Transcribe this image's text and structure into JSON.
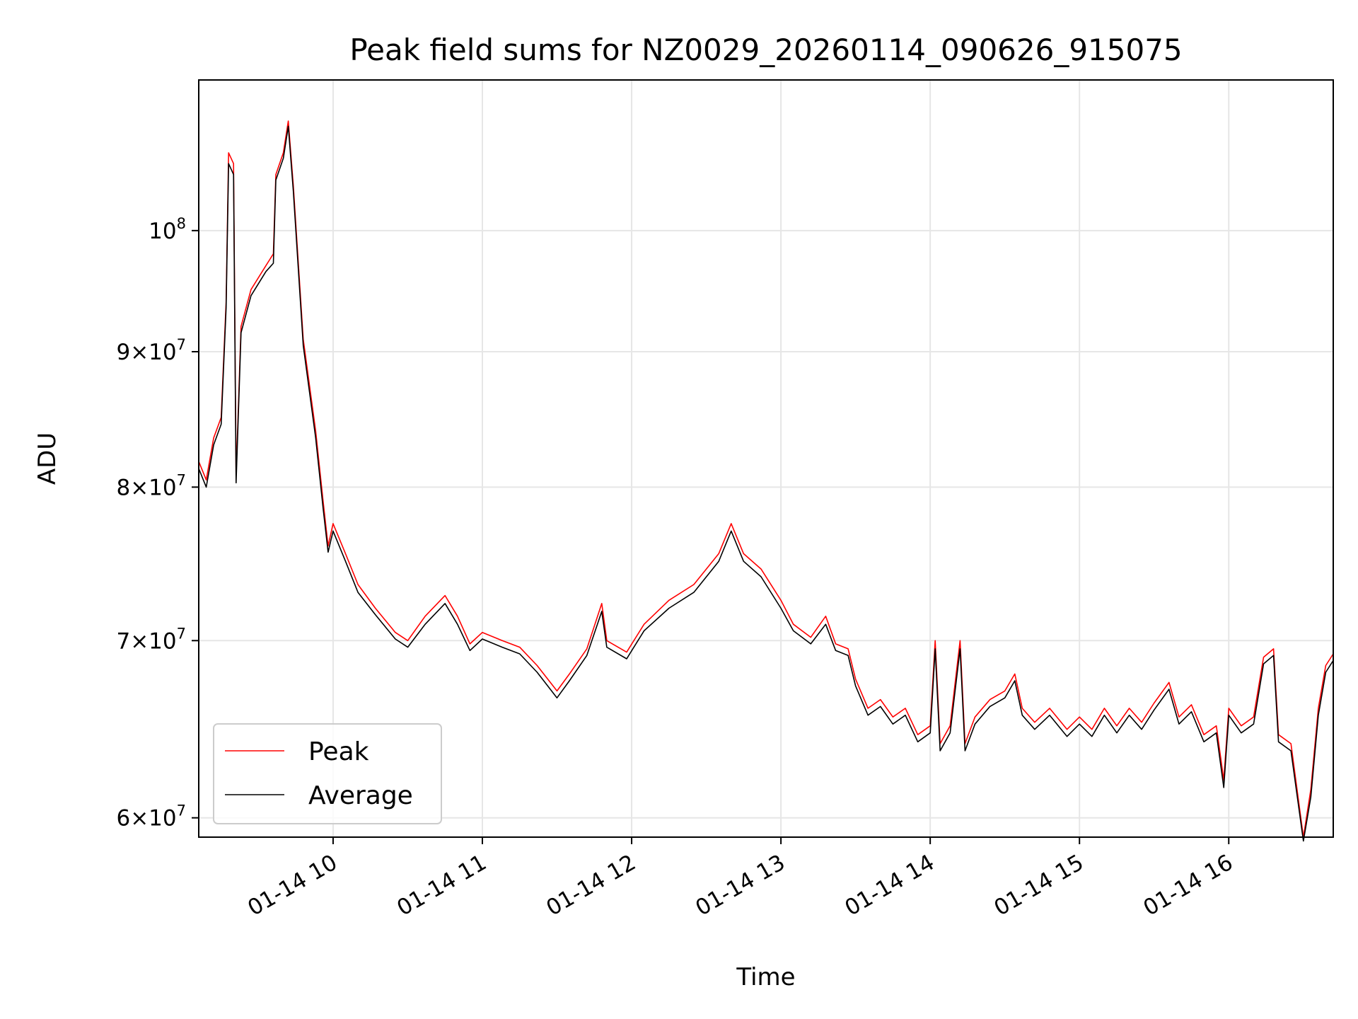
{
  "chart_data": {
    "type": "line",
    "title": "Peak field sums for NZ0029_20260114_090626_915075",
    "xlabel": "Time",
    "ylabel": "ADU",
    "y_scale": "log",
    "grid": true,
    "legend_placement": "lower-left",
    "xlim": [
      "2026-01-14 09:06",
      "2026-01-14 16:42"
    ],
    "ylim": [
      59000000,
      114000000
    ],
    "x_ticks": [
      {
        "value": "2026-01-14 10:00",
        "label": "01-14 10"
      },
      {
        "value": "2026-01-14 11:00",
        "label": "01-14 11"
      },
      {
        "value": "2026-01-14 12:00",
        "label": "01-14 12"
      },
      {
        "value": "2026-01-14 13:00",
        "label": "01-14 13"
      },
      {
        "value": "2026-01-14 14:00",
        "label": "01-14 14"
      },
      {
        "value": "2026-01-14 15:00",
        "label": "01-14 15"
      },
      {
        "value": "2026-01-14 16:00",
        "label": "01-14 16"
      }
    ],
    "y_ticks": [
      {
        "value": 60000000,
        "mant": "6",
        "exp": "7"
      },
      {
        "value": 70000000,
        "mant": "7",
        "exp": "7"
      },
      {
        "value": 80000000,
        "mant": "8",
        "exp": "7"
      },
      {
        "value": 90000000,
        "mant": "9",
        "exp": "7"
      },
      {
        "value": 100000000,
        "mant": "",
        "exp": "8"
      }
    ],
    "series": [
      {
        "name": "Peak",
        "color": "#ff0000",
        "points": [
          [
            "2026-01-14 09:06",
            81800000
          ],
          [
            "2026-01-14 09:09",
            80500000
          ],
          [
            "2026-01-14 09:12",
            83500000
          ],
          [
            "2026-01-14 09:15",
            85000000
          ],
          [
            "2026-01-14 09:17",
            94000000
          ],
          [
            "2026-01-14 09:18",
            107000000
          ],
          [
            "2026-01-14 09:20",
            106000000
          ],
          [
            "2026-01-14 09:21",
            80800000
          ],
          [
            "2026-01-14 09:23",
            92000000
          ],
          [
            "2026-01-14 09:27",
            95000000
          ],
          [
            "2026-01-14 09:33",
            97000000
          ],
          [
            "2026-01-14 09:36",
            98000000
          ],
          [
            "2026-01-14 09:37",
            105000000
          ],
          [
            "2026-01-14 09:40",
            107000000
          ],
          [
            "2026-01-14 09:42",
            110000000
          ],
          [
            "2026-01-14 09:44",
            104000000
          ],
          [
            "2026-01-14 09:48",
            91000000
          ],
          [
            "2026-01-14 09:53",
            84000000
          ],
          [
            "2026-01-14 09:56",
            79000000
          ],
          [
            "2026-01-14 09:58",
            76000000
          ],
          [
            "2026-01-14 10:00",
            77500000
          ],
          [
            "2026-01-14 10:05",
            75500000
          ],
          [
            "2026-01-14 10:10",
            73500000
          ],
          [
            "2026-01-14 10:17",
            72000000
          ],
          [
            "2026-01-14 10:25",
            70500000
          ],
          [
            "2026-01-14 10:30",
            70000000
          ],
          [
            "2026-01-14 10:37",
            71500000
          ],
          [
            "2026-01-14 10:45",
            72800000
          ],
          [
            "2026-01-14 10:50",
            71500000
          ],
          [
            "2026-01-14 10:55",
            69800000
          ],
          [
            "2026-01-14 11:00",
            70500000
          ],
          [
            "2026-01-14 11:08",
            70000000
          ],
          [
            "2026-01-14 11:15",
            69600000
          ],
          [
            "2026-01-14 11:22",
            68500000
          ],
          [
            "2026-01-14 11:30",
            67000000
          ],
          [
            "2026-01-14 11:35",
            68000000
          ],
          [
            "2026-01-14 11:42",
            69500000
          ],
          [
            "2026-01-14 11:48",
            72300000
          ],
          [
            "2026-01-14 11:50",
            70000000
          ],
          [
            "2026-01-14 11:58",
            69300000
          ],
          [
            "2026-01-14 12:05",
            71000000
          ],
          [
            "2026-01-14 12:15",
            72500000
          ],
          [
            "2026-01-14 12:25",
            73500000
          ],
          [
            "2026-01-14 12:35",
            75500000
          ],
          [
            "2026-01-14 12:40",
            77500000
          ],
          [
            "2026-01-14 12:45",
            75500000
          ],
          [
            "2026-01-14 12:52",
            74500000
          ],
          [
            "2026-01-14 13:00",
            72500000
          ],
          [
            "2026-01-14 13:05",
            71000000
          ],
          [
            "2026-01-14 13:12",
            70200000
          ],
          [
            "2026-01-14 13:18",
            71500000
          ],
          [
            "2026-01-14 13:22",
            69800000
          ],
          [
            "2026-01-14 13:27",
            69500000
          ],
          [
            "2026-01-14 13:30",
            67700000
          ],
          [
            "2026-01-14 13:35",
            66000000
          ],
          [
            "2026-01-14 13:40",
            66500000
          ],
          [
            "2026-01-14 13:45",
            65500000
          ],
          [
            "2026-01-14 13:50",
            66000000
          ],
          [
            "2026-01-14 13:55",
            64500000
          ],
          [
            "2026-01-14 14:00",
            65000000
          ],
          [
            "2026-01-14 14:02",
            70000000
          ],
          [
            "2026-01-14 14:04",
            64000000
          ],
          [
            "2026-01-14 14:08",
            65000000
          ],
          [
            "2026-01-14 14:12",
            70000000
          ],
          [
            "2026-01-14 14:14",
            64000000
          ],
          [
            "2026-01-14 14:18",
            65500000
          ],
          [
            "2026-01-14 14:24",
            66500000
          ],
          [
            "2026-01-14 14:30",
            67000000
          ],
          [
            "2026-01-14 14:34",
            68000000
          ],
          [
            "2026-01-14 14:37",
            66000000
          ],
          [
            "2026-01-14 14:42",
            65200000
          ],
          [
            "2026-01-14 14:48",
            66000000
          ],
          [
            "2026-01-14 14:55",
            64800000
          ],
          [
            "2026-01-14 15:00",
            65500000
          ],
          [
            "2026-01-14 15:05",
            64800000
          ],
          [
            "2026-01-14 15:10",
            66000000
          ],
          [
            "2026-01-14 15:15",
            65000000
          ],
          [
            "2026-01-14 15:20",
            66000000
          ],
          [
            "2026-01-14 15:25",
            65200000
          ],
          [
            "2026-01-14 15:30",
            66300000
          ],
          [
            "2026-01-14 15:36",
            67500000
          ],
          [
            "2026-01-14 15:40",
            65500000
          ],
          [
            "2026-01-14 15:45",
            66200000
          ],
          [
            "2026-01-14 15:50",
            64500000
          ],
          [
            "2026-01-14 15:55",
            65000000
          ],
          [
            "2026-01-14 15:58",
            62000000
          ],
          [
            "2026-01-14 16:00",
            66000000
          ],
          [
            "2026-01-14 16:05",
            65000000
          ],
          [
            "2026-01-14 16:10",
            65500000
          ],
          [
            "2026-01-14 16:14",
            69000000
          ],
          [
            "2026-01-14 16:18",
            69500000
          ],
          [
            "2026-01-14 16:20",
            64500000
          ],
          [
            "2026-01-14 16:25",
            64000000
          ],
          [
            "2026-01-14 16:30",
            59000000
          ],
          [
            "2026-01-14 16:33",
            61500000
          ],
          [
            "2026-01-14 16:36",
            66000000
          ],
          [
            "2026-01-14 16:39",
            68500000
          ],
          [
            "2026-01-14 16:42",
            69200000
          ]
        ]
      },
      {
        "name": "Average",
        "color": "#000000",
        "points": [
          [
            "2026-01-14 09:06",
            81300000
          ],
          [
            "2026-01-14 09:09",
            80000000
          ],
          [
            "2026-01-14 09:12",
            83000000
          ],
          [
            "2026-01-14 09:15",
            84500000
          ],
          [
            "2026-01-14 09:17",
            93500000
          ],
          [
            "2026-01-14 09:18",
            106000000
          ],
          [
            "2026-01-14 09:20",
            105000000
          ],
          [
            "2026-01-14 09:21",
            80300000
          ],
          [
            "2026-01-14 09:23",
            91500000
          ],
          [
            "2026-01-14 09:27",
            94500000
          ],
          [
            "2026-01-14 09:33",
            96500000
          ],
          [
            "2026-01-14 09:36",
            97200000
          ],
          [
            "2026-01-14 09:37",
            104500000
          ],
          [
            "2026-01-14 09:40",
            106500000
          ],
          [
            "2026-01-14 09:42",
            109500000
          ],
          [
            "2026-01-14 09:44",
            103500000
          ],
          [
            "2026-01-14 09:48",
            90500000
          ],
          [
            "2026-01-14 09:53",
            83500000
          ],
          [
            "2026-01-14 09:56",
            78500000
          ],
          [
            "2026-01-14 09:58",
            75600000
          ],
          [
            "2026-01-14 10:00",
            77000000
          ],
          [
            "2026-01-14 10:05",
            75000000
          ],
          [
            "2026-01-14 10:10",
            73000000
          ],
          [
            "2026-01-14 10:17",
            71600000
          ],
          [
            "2026-01-14 10:25",
            70100000
          ],
          [
            "2026-01-14 10:30",
            69600000
          ],
          [
            "2026-01-14 10:37",
            71000000
          ],
          [
            "2026-01-14 10:45",
            72300000
          ],
          [
            "2026-01-14 10:50",
            71000000
          ],
          [
            "2026-01-14 10:55",
            69400000
          ],
          [
            "2026-01-14 11:00",
            70100000
          ],
          [
            "2026-01-14 11:08",
            69600000
          ],
          [
            "2026-01-14 11:15",
            69200000
          ],
          [
            "2026-01-14 11:22",
            68100000
          ],
          [
            "2026-01-14 11:30",
            66600000
          ],
          [
            "2026-01-14 11:35",
            67600000
          ],
          [
            "2026-01-14 11:42",
            69100000
          ],
          [
            "2026-01-14 11:48",
            71800000
          ],
          [
            "2026-01-14 11:50",
            69600000
          ],
          [
            "2026-01-14 11:58",
            68900000
          ],
          [
            "2026-01-14 12:05",
            70600000
          ],
          [
            "2026-01-14 12:15",
            72000000
          ],
          [
            "2026-01-14 12:25",
            73000000
          ],
          [
            "2026-01-14 12:35",
            75000000
          ],
          [
            "2026-01-14 12:40",
            77000000
          ],
          [
            "2026-01-14 12:45",
            75000000
          ],
          [
            "2026-01-14 12:52",
            74000000
          ],
          [
            "2026-01-14 13:00",
            72000000
          ],
          [
            "2026-01-14 13:05",
            70600000
          ],
          [
            "2026-01-14 13:12",
            69800000
          ],
          [
            "2026-01-14 13:18",
            71000000
          ],
          [
            "2026-01-14 13:22",
            69400000
          ],
          [
            "2026-01-14 13:27",
            69100000
          ],
          [
            "2026-01-14 13:30",
            67300000
          ],
          [
            "2026-01-14 13:35",
            65600000
          ],
          [
            "2026-01-14 13:40",
            66100000
          ],
          [
            "2026-01-14 13:45",
            65100000
          ],
          [
            "2026-01-14 13:50",
            65600000
          ],
          [
            "2026-01-14 13:55",
            64100000
          ],
          [
            "2026-01-14 14:00",
            64600000
          ],
          [
            "2026-01-14 14:02",
            69500000
          ],
          [
            "2026-01-14 14:04",
            63600000
          ],
          [
            "2026-01-14 14:08",
            64600000
          ],
          [
            "2026-01-14 14:12",
            69500000
          ],
          [
            "2026-01-14 14:14",
            63600000
          ],
          [
            "2026-01-14 14:18",
            65100000
          ],
          [
            "2026-01-14 14:24",
            66100000
          ],
          [
            "2026-01-14 14:30",
            66600000
          ],
          [
            "2026-01-14 14:34",
            67600000
          ],
          [
            "2026-01-14 14:37",
            65600000
          ],
          [
            "2026-01-14 14:42",
            64800000
          ],
          [
            "2026-01-14 14:48",
            65600000
          ],
          [
            "2026-01-14 14:55",
            64400000
          ],
          [
            "2026-01-14 15:00",
            65100000
          ],
          [
            "2026-01-14 15:05",
            64400000
          ],
          [
            "2026-01-14 15:10",
            65600000
          ],
          [
            "2026-01-14 15:15",
            64600000
          ],
          [
            "2026-01-14 15:20",
            65600000
          ],
          [
            "2026-01-14 15:25",
            64800000
          ],
          [
            "2026-01-14 15:30",
            65900000
          ],
          [
            "2026-01-14 15:36",
            67100000
          ],
          [
            "2026-01-14 15:40",
            65100000
          ],
          [
            "2026-01-14 15:45",
            65800000
          ],
          [
            "2026-01-14 15:50",
            64100000
          ],
          [
            "2026-01-14 15:55",
            64600000
          ],
          [
            "2026-01-14 15:58",
            61600000
          ],
          [
            "2026-01-14 16:00",
            65600000
          ],
          [
            "2026-01-14 16:05",
            64600000
          ],
          [
            "2026-01-14 16:10",
            65100000
          ],
          [
            "2026-01-14 16:14",
            68600000
          ],
          [
            "2026-01-14 16:18",
            69100000
          ],
          [
            "2026-01-14 16:20",
            64100000
          ],
          [
            "2026-01-14 16:25",
            63600000
          ],
          [
            "2026-01-14 16:30",
            58800000
          ],
          [
            "2026-01-14 16:33",
            61100000
          ],
          [
            "2026-01-14 16:36",
            65600000
          ],
          [
            "2026-01-14 16:39",
            68100000
          ],
          [
            "2026-01-14 16:42",
            68800000
          ]
        ]
      }
    ]
  }
}
